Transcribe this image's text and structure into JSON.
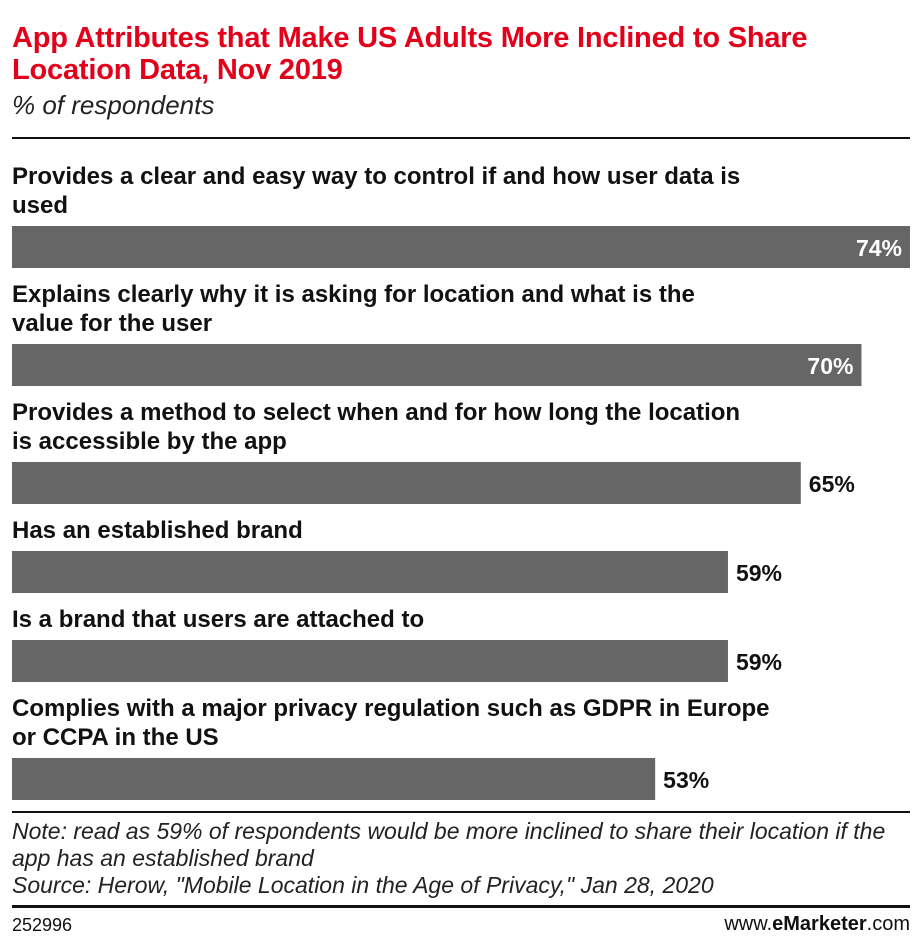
{
  "chart_data": {
    "type": "bar",
    "orientation": "horizontal",
    "title": "App Attributes that Make US Adults More Inclined to Share Location Data, Nov 2019",
    "subtitle": "% of respondents",
    "categories": [
      "Provides a clear and easy way to control if and how user data is used",
      "Explains clearly why it is asking for location and what is the value for the user",
      "Provides a method to select when and for how long the location is accessible by the app",
      "Has an established brand",
      "Is a brand that users are attached to",
      "Complies with a major privacy regulation such as GDPR in Europe or CCPA in the US"
    ],
    "values": [
      74,
      70,
      65,
      59,
      59,
      53
    ],
    "value_labels": [
      "74%",
      "70%",
      "65%",
      "59%",
      "59%",
      "53%"
    ],
    "xlim": [
      0,
      74
    ],
    "grid": false,
    "bar_color": "#666666"
  },
  "footer": {
    "note": "Note: read as 59% of respondents would be more inclined to share their location if the app has an established brand",
    "source": "Source: Herow, \"Mobile Location in the Age of Privacy,\" Jan 28, 2020",
    "chart_id": "252996",
    "brand_prefix": "www.",
    "brand_bold": "eMarketer",
    "brand_suffix": ".com"
  }
}
